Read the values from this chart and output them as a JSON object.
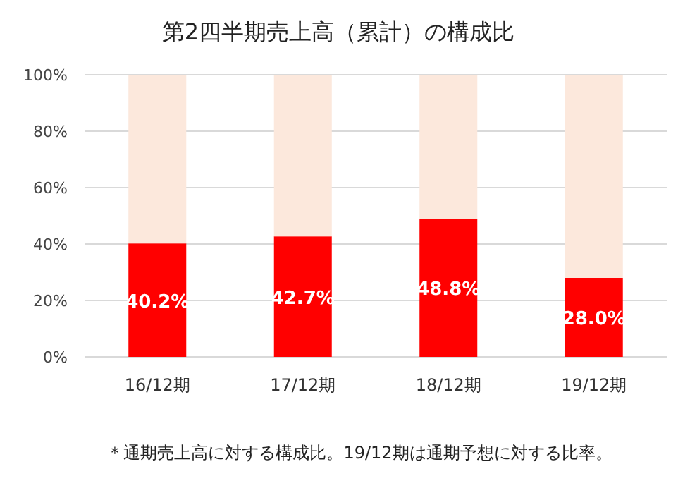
{
  "chart_data": {
    "type": "bar",
    "title": "第2四半期売上高（累計）の構成比",
    "stacked": true,
    "categories": [
      "16/12期",
      "17/12期",
      "18/12期",
      "19/12期"
    ],
    "series": [
      {
        "color": "#ff0000",
        "values": [
          40.2,
          42.7,
          48.8,
          28.0
        ],
        "value_labels": [
          "40.2%",
          "42.7%",
          "48.8%",
          "28.0%"
        ]
      },
      {
        "color": "#fce8dc",
        "values": [
          59.8,
          57.3,
          51.2,
          72.0
        ]
      }
    ],
    "ylim": [
      0,
      100
    ],
    "yticks": [
      {
        "value": 0,
        "label": "0%"
      },
      {
        "value": 20,
        "label": "20%"
      },
      {
        "value": 40,
        "label": "40%"
      },
      {
        "value": 60,
        "label": "60%"
      },
      {
        "value": 80,
        "label": "80%"
      },
      {
        "value": 100,
        "label": "100%"
      }
    ],
    "grid": "y",
    "annotations": [
      "＊通期売上高に対する構成比。19/12期は通期予想に対する比率。"
    ]
  }
}
